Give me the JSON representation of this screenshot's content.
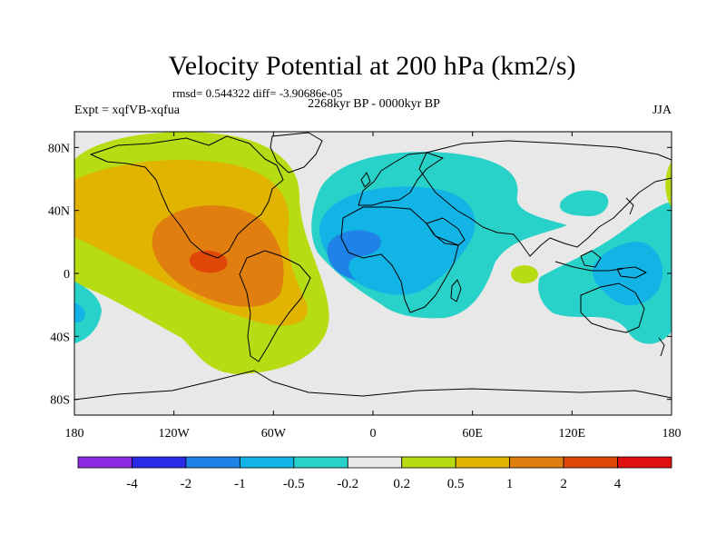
{
  "title": "Velocity Potential at 200 hPa (km2/s)",
  "stats": "rmsd= 0.544322 diff= -3.90686e-05",
  "left_label": "Expt = xqfVB-xqfua",
  "center_label": "2268kyr BP - 0000kyr BP",
  "right_label": "JJA",
  "y_ticks": [
    {
      "label": "80N",
      "lat": 80
    },
    {
      "label": "40N",
      "lat": 40
    },
    {
      "label": "0",
      "lat": 0
    },
    {
      "label": "40S",
      "lat": -40
    },
    {
      "label": "80S",
      "lat": -80
    }
  ],
  "x_ticks": [
    {
      "label": "180",
      "lon": -180
    },
    {
      "label": "120W",
      "lon": -120
    },
    {
      "label": "60W",
      "lon": -60
    },
    {
      "label": "0",
      "lon": 0
    },
    {
      "label": "60E",
      "lon": 60
    },
    {
      "label": "120E",
      "lon": 120
    },
    {
      "label": "180",
      "lon": 180
    }
  ],
  "colorbar": {
    "colors": [
      "#8a2be2",
      "#2a2ae6",
      "#1e82e6",
      "#12b4e6",
      "#28d2c8",
      "#e8e8e8",
      "#b8dc14",
      "#e0b400",
      "#e07e10",
      "#e0480a",
      "#e01010"
    ],
    "levels": [
      "-4",
      "-2",
      "-1",
      "-0.5",
      "-0.2",
      "0.2",
      "0.5",
      "1",
      "2",
      "4"
    ]
  },
  "chart_data": {
    "type": "filled_contour_map",
    "title": "Velocity Potential at 200 hPa (km2/s)",
    "variable": "velocity potential difference",
    "units": "km2/s",
    "levels": [
      -4,
      -2,
      -1,
      -0.5,
      -0.2,
      0.2,
      0.5,
      1,
      2,
      4
    ],
    "lon_range": [
      -180,
      180
    ],
    "lat_range": [
      -90,
      90
    ],
    "features": [
      {
        "name": "Eastern Pacific / Central America positive anomaly",
        "center_lon": -102,
        "center_lat": 4,
        "peak_band": "2 to 4"
      },
      {
        "name": "Africa / Atlantic negative anomaly",
        "center_lon": -8,
        "center_lat": 5,
        "peak_band": "-2 to -1"
      },
      {
        "name": "Maritime continent / West Pacific negative anomaly",
        "center_lon": 145,
        "center_lat": 0,
        "peak_band": "-1 to -0.5"
      },
      {
        "name": "Indian Ocean weak positive cell",
        "center_lon": 75,
        "center_lat": -2,
        "peak_band": "0.2 to 0.5"
      }
    ]
  }
}
